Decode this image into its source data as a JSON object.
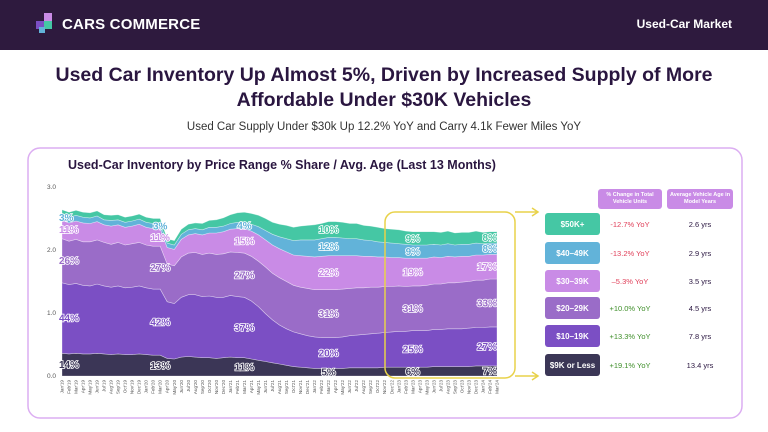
{
  "header": {
    "logo": "CARS COMMERCE",
    "section": "Used-Car Market"
  },
  "title": "Used Car Inventory Up Almost 5%, Driven by Increased Supply of More Affordable Under $30K Vehicles",
  "subtitle": "Used Car Supply Under $30k Up 12.2% YoY and Carry 4.1k Fewer Miles YoY",
  "chart_data": {
    "type": "stacked-area",
    "title": "Used-Car Inventory by Price Range % Share / Avg. Age (Last 13 Months)",
    "categories": [
      "Jan'19",
      "Feb'19",
      "Mar'19",
      "Apr'19",
      "May'19",
      "Jun'19",
      "Jul'19",
      "Aug'19",
      "Sep'19",
      "Oct'19",
      "Nov'19",
      "Dec'19",
      "Jan'20",
      "Feb'20",
      "Mar'20",
      "Apr'20",
      "May'20",
      "Jun'20",
      "Jul'20",
      "Aug'20",
      "Sep'20",
      "Oct'20",
      "Nov'20",
      "Dec'20",
      "Jan'21",
      "Feb'21",
      "Mar'21",
      "Apr'21",
      "May'21",
      "Jun'21",
      "Jul'21",
      "Aug'21",
      "Sep'21",
      "Oct'21",
      "Nov'21",
      "Dec'21",
      "Jan'22",
      "Feb'22",
      "Mar'22",
      "Apr'22",
      "May'22",
      "Jun'22",
      "Jul'22",
      "Aug'22",
      "Sep'22",
      "Oct'22",
      "Nov'22",
      "Dec'22",
      "Jan'23",
      "Feb'23",
      "Mar'23",
      "Apr'23",
      "May'23",
      "Jun'23",
      "Jul'23",
      "Aug'23",
      "Sep'23",
      "Oct'23",
      "Nov'23",
      "Dec'23",
      "Jan'24",
      "Feb'24",
      "Mar'24"
    ],
    "series": [
      {
        "name": "$9K or Less",
        "color": "#3b3656",
        "values": [
          0.36,
          0.35,
          0.36,
          0.35,
          0.35,
          0.36,
          0.35,
          0.34,
          0.35,
          0.34,
          0.34,
          0.35,
          0.34,
          0.33,
          0.33,
          0.28,
          0.27,
          0.3,
          0.31,
          0.3,
          0.29,
          0.29,
          0.28,
          0.29,
          0.3,
          0.29,
          0.29,
          0.27,
          0.25,
          0.23,
          0.21,
          0.19,
          0.17,
          0.15,
          0.14,
          0.13,
          0.12,
          0.12,
          0.12,
          0.12,
          0.12,
          0.13,
          0.13,
          0.13,
          0.13,
          0.13,
          0.14,
          0.14,
          0.14,
          0.14,
          0.14,
          0.14,
          0.14,
          0.15,
          0.15,
          0.15,
          0.15,
          0.15,
          0.15,
          0.16,
          0.16,
          0.16,
          0.16
        ]
      },
      {
        "name": "$10–19K",
        "color": "#7b4fc4",
        "values": [
          1.12,
          1.1,
          1.11,
          1.09,
          1.08,
          1.1,
          1.08,
          1.07,
          1.08,
          1.06,
          1.07,
          1.08,
          1.06,
          1.05,
          1.05,
          0.9,
          0.88,
          0.95,
          0.98,
          0.99,
          0.97,
          0.98,
          0.97,
          0.96,
          0.98,
          0.97,
          0.96,
          0.92,
          0.85,
          0.76,
          0.68,
          0.62,
          0.58,
          0.55,
          0.53,
          0.51,
          0.5,
          0.49,
          0.49,
          0.49,
          0.5,
          0.51,
          0.52,
          0.53,
          0.54,
          0.55,
          0.55,
          0.56,
          0.57,
          0.57,
          0.58,
          0.58,
          0.58,
          0.59,
          0.59,
          0.6,
          0.6,
          0.6,
          0.61,
          0.61,
          0.61,
          0.62,
          0.62
        ]
      },
      {
        "name": "$20–29K",
        "color": "#9a6cc8",
        "values": [
          0.7,
          0.69,
          0.7,
          0.69,
          0.7,
          0.7,
          0.69,
          0.68,
          0.69,
          0.68,
          0.69,
          0.69,
          0.68,
          0.68,
          0.68,
          0.6,
          0.6,
          0.64,
          0.66,
          0.67,
          0.67,
          0.68,
          0.68,
          0.69,
          0.69,
          0.7,
          0.7,
          0.71,
          0.72,
          0.74,
          0.74,
          0.75,
          0.75,
          0.74,
          0.74,
          0.75,
          0.75,
          0.76,
          0.76,
          0.76,
          0.76,
          0.75,
          0.75,
          0.74,
          0.74,
          0.73,
          0.73,
          0.72,
          0.72,
          0.71,
          0.71,
          0.71,
          0.72,
          0.72,
          0.72,
          0.73,
          0.73,
          0.74,
          0.74,
          0.75,
          0.75,
          0.76,
          0.76
        ]
      },
      {
        "name": "$30–39K",
        "color": "#c98be6",
        "values": [
          0.29,
          0.29,
          0.29,
          0.3,
          0.29,
          0.29,
          0.28,
          0.29,
          0.28,
          0.28,
          0.28,
          0.29,
          0.28,
          0.28,
          0.28,
          0.26,
          0.26,
          0.28,
          0.29,
          0.3,
          0.31,
          0.32,
          0.34,
          0.35,
          0.36,
          0.38,
          0.39,
          0.4,
          0.42,
          0.43,
          0.45,
          0.46,
          0.47,
          0.48,
          0.5,
          0.51,
          0.52,
          0.53,
          0.54,
          0.54,
          0.53,
          0.52,
          0.51,
          0.5,
          0.49,
          0.48,
          0.47,
          0.46,
          0.45,
          0.45,
          0.44,
          0.44,
          0.43,
          0.43,
          0.42,
          0.42,
          0.41,
          0.41,
          0.4,
          0.4,
          0.4,
          0.39,
          0.39
        ]
      },
      {
        "name": "$40–49K",
        "color": "#62b3d9",
        "values": [
          0.09,
          0.09,
          0.09,
          0.09,
          0.09,
          0.09,
          0.08,
          0.09,
          0.08,
          0.08,
          0.08,
          0.08,
          0.08,
          0.08,
          0.08,
          0.07,
          0.07,
          0.08,
          0.08,
          0.08,
          0.08,
          0.09,
          0.09,
          0.09,
          0.09,
          0.1,
          0.1,
          0.11,
          0.13,
          0.15,
          0.17,
          0.19,
          0.21,
          0.23,
          0.25,
          0.26,
          0.27,
          0.28,
          0.29,
          0.29,
          0.28,
          0.27,
          0.27,
          0.26,
          0.25,
          0.24,
          0.23,
          0.23,
          0.22,
          0.22,
          0.21,
          0.21,
          0.21,
          0.2,
          0.2,
          0.2,
          0.19,
          0.19,
          0.19,
          0.19,
          0.18,
          0.18,
          0.18
        ]
      },
      {
        "name": "$50K+",
        "color": "#45c7a4",
        "values": [
          0.08,
          0.08,
          0.08,
          0.08,
          0.08,
          0.08,
          0.08,
          0.08,
          0.08,
          0.08,
          0.08,
          0.08,
          0.08,
          0.08,
          0.08,
          0.07,
          0.07,
          0.08,
          0.09,
          0.09,
          0.1,
          0.11,
          0.12,
          0.13,
          0.14,
          0.15,
          0.16,
          0.17,
          0.18,
          0.19,
          0.19,
          0.2,
          0.21,
          0.21,
          0.22,
          0.23,
          0.24,
          0.24,
          0.25,
          0.25,
          0.25,
          0.24,
          0.24,
          0.23,
          0.23,
          0.23,
          0.22,
          0.22,
          0.22,
          0.21,
          0.21,
          0.21,
          0.21,
          0.2,
          0.2,
          0.2,
          0.19,
          0.19,
          0.19,
          0.19,
          0.18,
          0.18,
          0.18
        ]
      }
    ],
    "share_labels": [
      [
        "14%",
        "44%",
        "26%",
        "11%",
        "3%",
        null
      ],
      [
        "13%",
        "42%",
        "27%",
        "11%",
        "3%",
        null
      ],
      [
        "11%",
        "37%",
        "27%",
        "15%",
        "4%",
        null
      ],
      [
        "5%",
        "20%",
        "31%",
        "22%",
        "12%",
        "10%"
      ],
      [
        "6%",
        "25%",
        "31%",
        "19%",
        "9%",
        "9%"
      ],
      [
        "7%",
        "27%",
        "33%",
        "17%",
        "8%",
        "8%"
      ]
    ],
    "ylim": [
      0,
      3
    ],
    "yticks": [
      {
        "value": 0,
        "label": "0.0"
      },
      {
        "value": 1,
        "label": "1.0"
      },
      {
        "value": 2,
        "label": "2.0"
      },
      {
        "value": 3,
        "label": "3.0"
      }
    ],
    "grid": false
  },
  "table": {
    "headers": [
      "% Change in Total Vehicle Units",
      "Average Vehicle Age in Model Years"
    ],
    "rows": [
      {
        "change": "-12.7% YoY",
        "age": "2.6 yrs"
      },
      {
        "change": "-13.2% YoY",
        "age": "2.9 yrs"
      },
      {
        "change": "–5.3% YoY",
        "age": "3.5 yrs"
      },
      {
        "change": "+10.0% YoY",
        "age": "4.5 yrs"
      },
      {
        "change": "+13.3% YoY",
        "age": "7.8 yrs"
      },
      {
        "change": "+19.1% YoY",
        "age": "13.4 yrs"
      }
    ]
  }
}
